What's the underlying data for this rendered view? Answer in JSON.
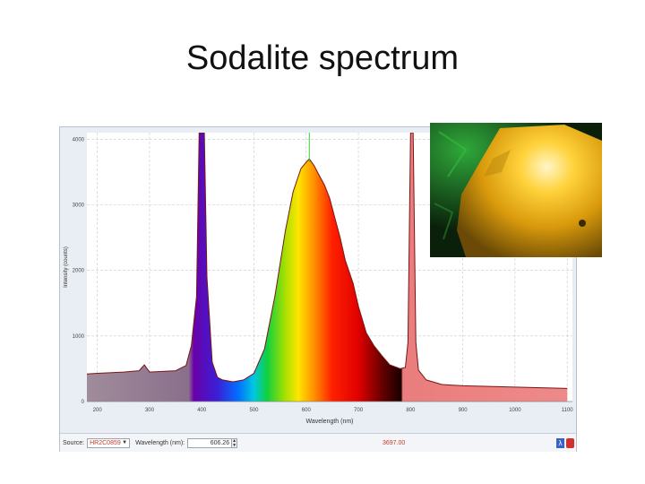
{
  "slide": {
    "title": "Sodalite spectrum"
  },
  "statusbar": {
    "source_label": "Source:",
    "source_value": "HR2C0859",
    "wavelength_label": "Wavelength (nm):",
    "wavelength_value": "606.26",
    "intensity_readout": "3697.00"
  },
  "photo": {
    "subject": "fluorescing sodalite crystal (yellow-orange glow)"
  },
  "icons": [
    "chevron-down-icon",
    "spin-arrows-icon",
    "lambda-icon",
    "close-icon"
  ],
  "colors": {
    "overlay_bands": "#e85a5a",
    "marker": "#33cc33",
    "curve": "#7a1515"
  },
  "chart_data": {
    "type": "area",
    "title": "",
    "xlabel": "Wavelength (nm)",
    "ylabel": "Intensity (counts)",
    "xlim": [
      180,
      1110
    ],
    "ylim": [
      0,
      4100
    ],
    "xticks": [
      200,
      300,
      400,
      500,
      600,
      700,
      800,
      900,
      1000,
      1100
    ],
    "yticks": [
      0,
      1000,
      2000,
      3000,
      4000
    ],
    "grid": true,
    "fill": "visible-spectrum color gradient (violet to red) under curve from ~380 nm to ~780 nm; grey-purple below 380 nm; light red above 780 nm",
    "marker_x": 606,
    "series": [
      {
        "x": [
          180,
          200,
          250,
          280,
          290,
          300,
          350,
          370,
          380,
          390,
          395,
          400,
          405,
          410,
          420,
          430,
          440,
          460,
          480,
          500,
          520,
          540,
          560,
          575,
          590,
          600,
          606,
          615,
          625,
          635,
          645,
          655,
          665,
          675,
          690,
          700,
          715,
          730,
          745,
          760,
          780,
          790,
          795,
          800,
          805,
          810,
          815,
          830,
          860,
          900,
          1000,
          1100
        ],
        "y": [
          420,
          430,
          450,
          470,
          560,
          450,
          470,
          550,
          850,
          1600,
          4100,
          4100,
          4100,
          1900,
          600,
          370,
          330,
          300,
          330,
          430,
          800,
          1600,
          2600,
          3200,
          3550,
          3650,
          3700,
          3600,
          3450,
          3300,
          3100,
          2800,
          2500,
          2150,
          1800,
          1450,
          1050,
          850,
          700,
          560,
          500,
          520,
          900,
          4100,
          4100,
          900,
          480,
          330,
          260,
          240,
          220,
          200
        ]
      }
    ]
  }
}
